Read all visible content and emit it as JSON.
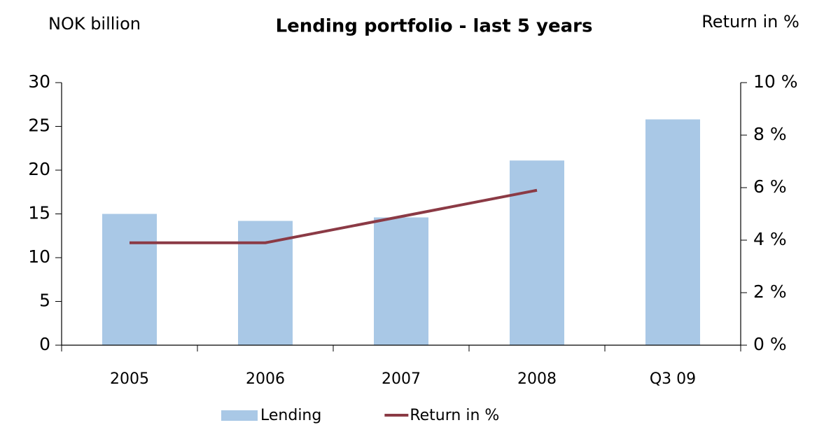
{
  "chart_data": {
    "type": "bar",
    "title": "Lending portfolio - last 5 years",
    "y_label": "NOK billion",
    "y2_label": "Return in %",
    "categories": [
      "2005",
      "2006",
      "2007",
      "2008",
      "Q3 09"
    ],
    "series": [
      {
        "name": "Lending",
        "type": "bar",
        "color": "#a9c8e6",
        "values": [
          15,
          14.2,
          14.6,
          21.1,
          25.8
        ]
      },
      {
        "name": "Return in %",
        "type": "line",
        "axis": "y2",
        "color": "#8b3a45",
        "values": [
          3.9,
          3.9,
          4.9,
          5.9,
          null
        ]
      }
    ],
    "ylim": [
      0,
      30
    ],
    "yticks": [
      0,
      5,
      10,
      15,
      20,
      25,
      30
    ],
    "y2lim": [
      0,
      10
    ],
    "y2ticks": [
      {
        "value": 0,
        "label": "0 %"
      },
      {
        "value": 2,
        "label": "2 %"
      },
      {
        "value": 4,
        "label": "4 %"
      },
      {
        "value": 6,
        "label": "6 %"
      },
      {
        "value": 8,
        "label": "8 %"
      },
      {
        "value": 10,
        "label": "10 %"
      }
    ],
    "grid": false,
    "legend": "bottom"
  }
}
